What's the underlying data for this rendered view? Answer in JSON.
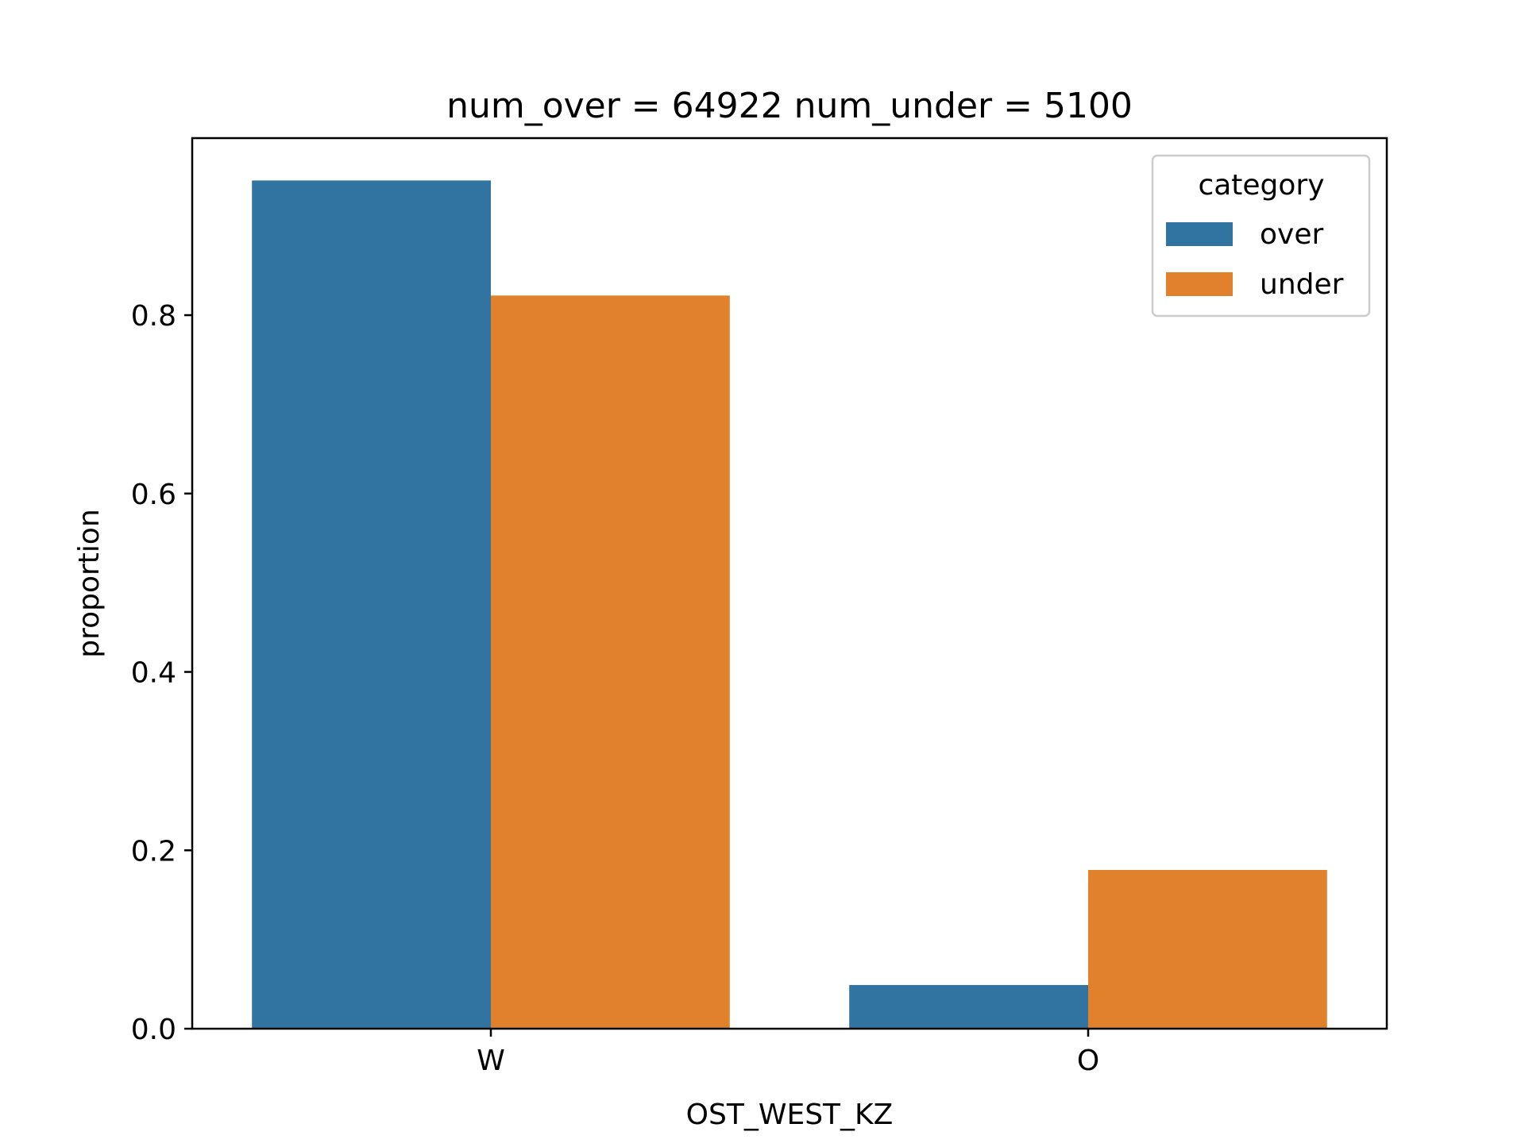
{
  "chart_data": {
    "type": "bar",
    "title": "num_over = 64922  num_under = 5100",
    "xlabel": "OST_WEST_KZ",
    "ylabel": "proportion",
    "categories": [
      "W",
      "O"
    ],
    "series": [
      {
        "name": "over",
        "color": "#3274a1",
        "values": [
          0.951,
          0.049
        ]
      },
      {
        "name": "under",
        "color": "#e1812c",
        "values": [
          0.822,
          0.178
        ]
      }
    ],
    "ylim": [
      0,
      0.9985
    ],
    "yticks": [
      0.0,
      0.2,
      0.4,
      0.6,
      0.8
    ],
    "ytick_labels": [
      "0.0",
      "0.2",
      "0.4",
      "0.6",
      "0.8"
    ],
    "grid": false,
    "legend": {
      "title": "category",
      "placement": "top-right"
    }
  }
}
